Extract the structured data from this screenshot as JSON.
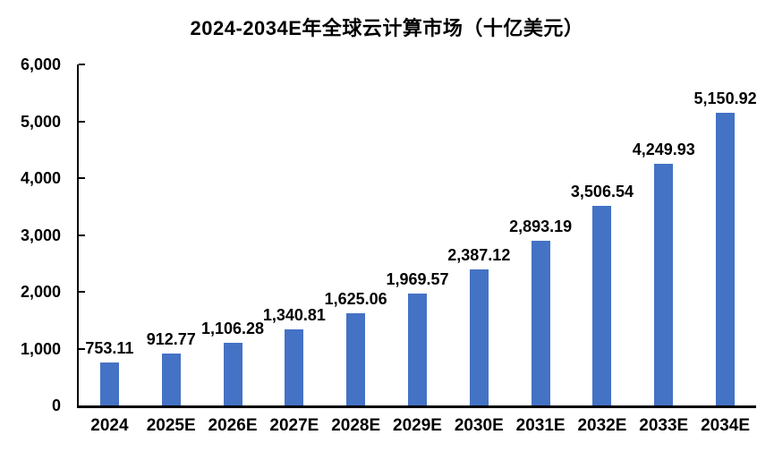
{
  "chart_data": {
    "type": "bar",
    "title": "2024-2034E年全球云计算市场（十亿美元）",
    "categories": [
      "2024",
      "2025E",
      "2026E",
      "2027E",
      "2028E",
      "2029E",
      "2030E",
      "2031E",
      "2032E",
      "2033E",
      "2034E"
    ],
    "values": [
      753.11,
      912.77,
      1106.28,
      1340.81,
      1625.06,
      1969.57,
      2387.12,
      2893.19,
      3506.54,
      4249.93,
      5150.92
    ],
    "value_labels": [
      "753.11",
      "912.77",
      "1,106.28",
      "1,340.81",
      "1,625.06",
      "1,969.57",
      "2,387.12",
      "2,893.19",
      "3,506.54",
      "4,249.93",
      "5,150.92"
    ],
    "y_tick_values": [
      0,
      1000,
      2000,
      3000,
      4000,
      5000,
      6000
    ],
    "y_tick_labels": [
      "0",
      "1,000",
      "2,000",
      "3,000",
      "4,000",
      "5,000",
      "6,000"
    ],
    "ylim": [
      0,
      6000
    ],
    "xlabel": "",
    "ylabel": "",
    "grid": false,
    "legend": "none",
    "bar_color": "#4472C4",
    "axis_color": "#000000",
    "text_color": "#000000"
  }
}
